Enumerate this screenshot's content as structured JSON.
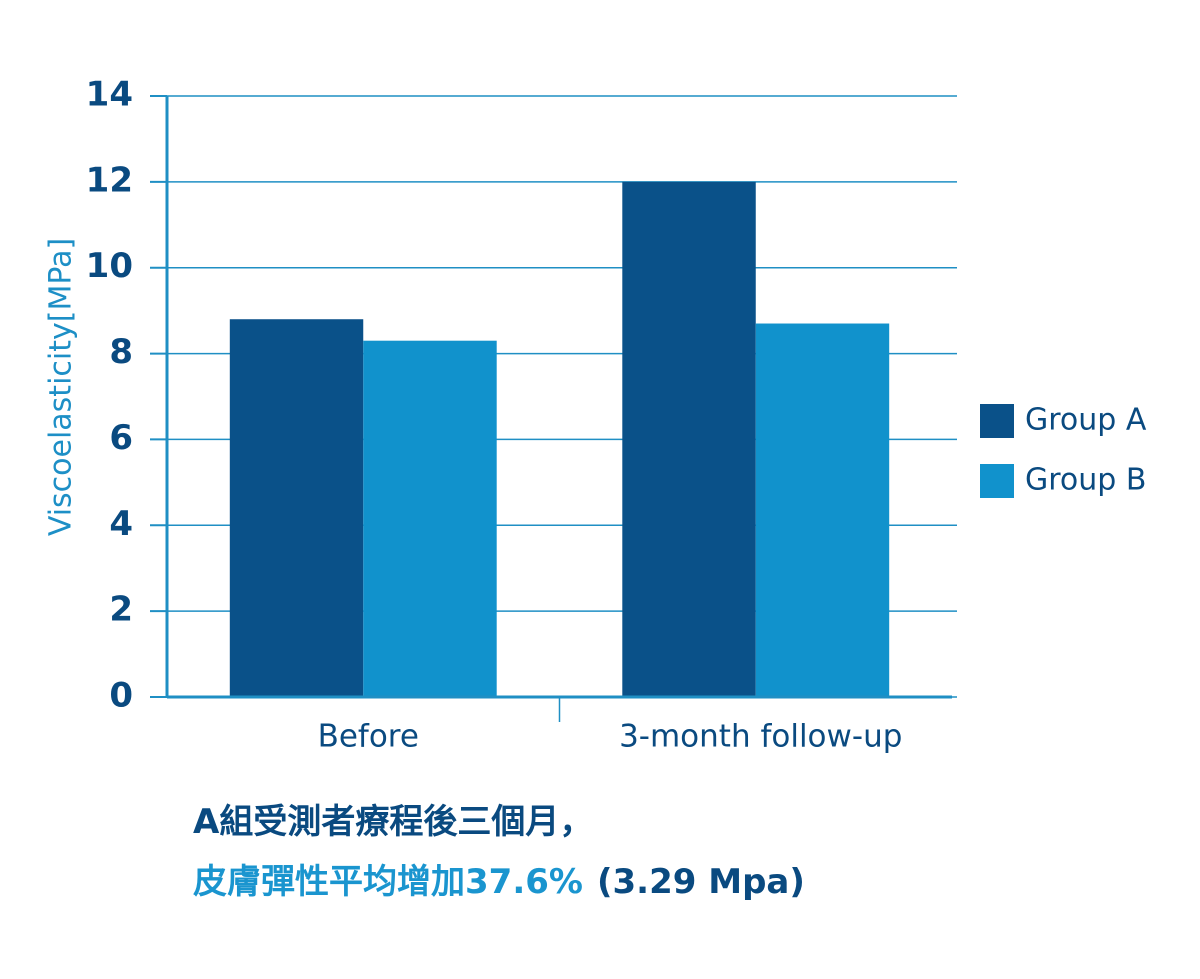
{
  "chart_data": {
    "type": "bar",
    "categories": [
      "Before",
      "3-month follow-up"
    ],
    "series": [
      {
        "name": "Group A",
        "color": "#0a5189",
        "values": [
          8.8,
          12
        ]
      },
      {
        "name": "Group B",
        "color": "#1192cc",
        "values": [
          8.3,
          8.7
        ]
      }
    ],
    "y_label": "Viscoelasticity[MPa]",
    "ylim": [
      0,
      14
    ],
    "yticks": [
      0,
      2,
      4,
      6,
      8,
      10,
      12,
      14
    ],
    "grid": true,
    "legend": "right",
    "annotations": [
      {
        "text": "A組受測者療程後三個月，",
        "color": "#0a4a80"
      },
      {
        "text": "皮膚彈性平均增加37.6%",
        "color": "#1a95cf"
      },
      {
        "text": "(3.29 Mpa)",
        "color": "#0a4a80"
      }
    ]
  }
}
